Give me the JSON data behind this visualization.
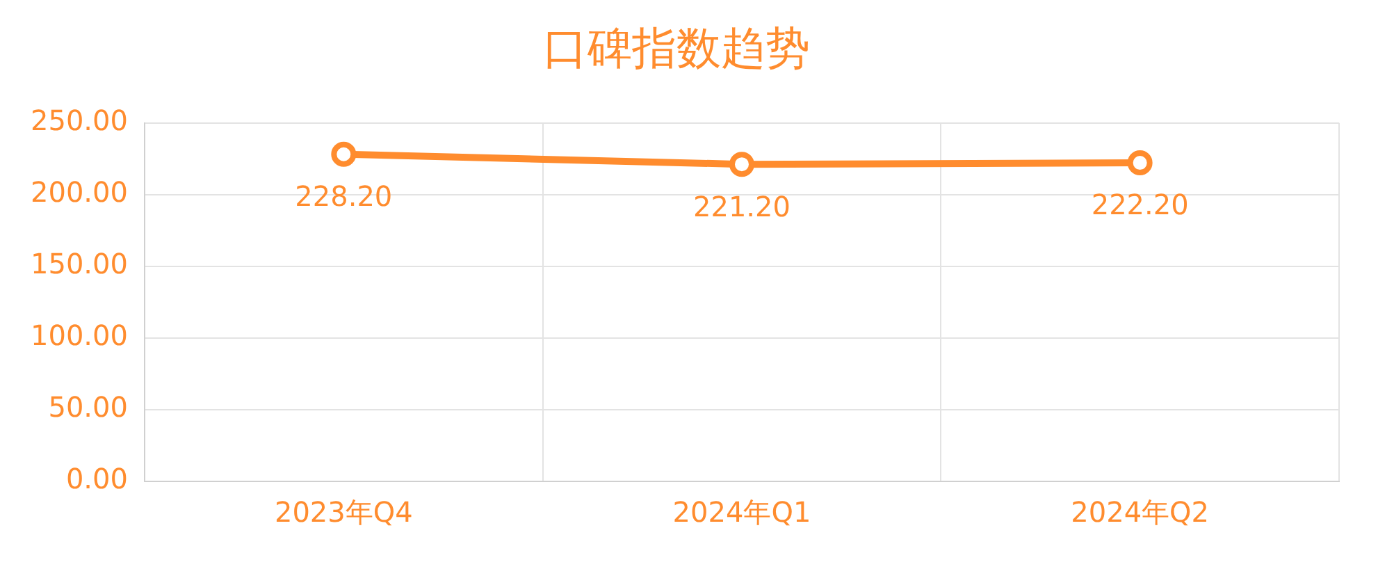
{
  "chart_data": {
    "type": "line",
    "title": "口碑指数趋势",
    "categories": [
      "2023年Q4",
      "2024年Q1",
      "2024年Q2"
    ],
    "series": [
      {
        "color": "#ff8c2e",
        "values": [
          228.2,
          221.2,
          222.2
        ],
        "value_labels": [
          "228.20",
          "221.20",
          "222.20"
        ]
      }
    ],
    "ylim": [
      0,
      250
    ],
    "yticks": [
      {
        "value": 0,
        "label": "0.00"
      },
      {
        "value": 50,
        "label": "50.00"
      },
      {
        "value": 100,
        "label": "100.00"
      },
      {
        "value": 150,
        "label": "150.00"
      },
      {
        "value": 200,
        "label": "200.00"
      },
      {
        "value": 250,
        "label": "250.00"
      }
    ],
    "grid": true,
    "legend": false,
    "marker": "circle",
    "line_style": "solid"
  }
}
